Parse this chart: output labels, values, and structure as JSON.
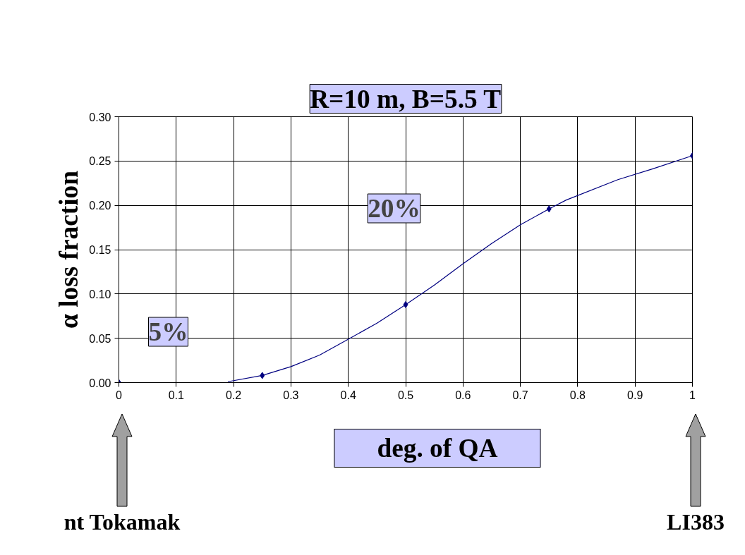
{
  "chart_data": {
    "type": "line",
    "title": "R=10 m, B=5.5 T",
    "xlabel": "deg. of QA",
    "ylabel": "α loss fraction",
    "x": [
      0,
      0.25,
      0.5,
      0.75,
      1
    ],
    "series": [
      {
        "color": "#000080",
        "x": [
          0.19,
          0.25,
          0.3,
          0.35,
          0.4,
          0.45,
          0.5,
          0.55,
          0.6,
          0.65,
          0.7,
          0.75,
          0.78,
          0.87,
          0.93,
          1
        ],
        "values": [
          0.001,
          0.008,
          0.018,
          0.031,
          0.049,
          0.067,
          0.088,
          0.11,
          0.134,
          0.157,
          0.178,
          0.196,
          0.206,
          0.229,
          0.241,
          0.256
        ]
      },
      {
        "type": "scatter",
        "marker": "diamond",
        "color": "#000080",
        "values": [
          0,
          0.008,
          0.088,
          0.196,
          0.256
        ]
      }
    ],
    "xlim": [
      0,
      1
    ],
    "xticks": [
      0,
      0.1,
      0.2,
      0.3,
      0.4,
      0.5,
      0.6,
      0.7,
      0.8,
      0.9,
      1
    ],
    "ylim": [
      0,
      0.3
    ],
    "yticks": [
      {
        "value": 0,
        "label": "0.00"
      },
      {
        "value": 0.05,
        "label": "0.05"
      },
      {
        "value": 0.1,
        "label": "0.10"
      },
      {
        "value": 0.15,
        "label": "0.15"
      },
      {
        "value": 0.2,
        "label": "0.20"
      },
      {
        "value": 0.25,
        "label": "0.25"
      },
      {
        "value": 0.3,
        "label": "0.30"
      }
    ],
    "grid": true,
    "marker": "none",
    "line_style": "solid",
    "annotations": [
      "20%",
      "5%",
      "nt Tokamak",
      "LI383"
    ]
  }
}
